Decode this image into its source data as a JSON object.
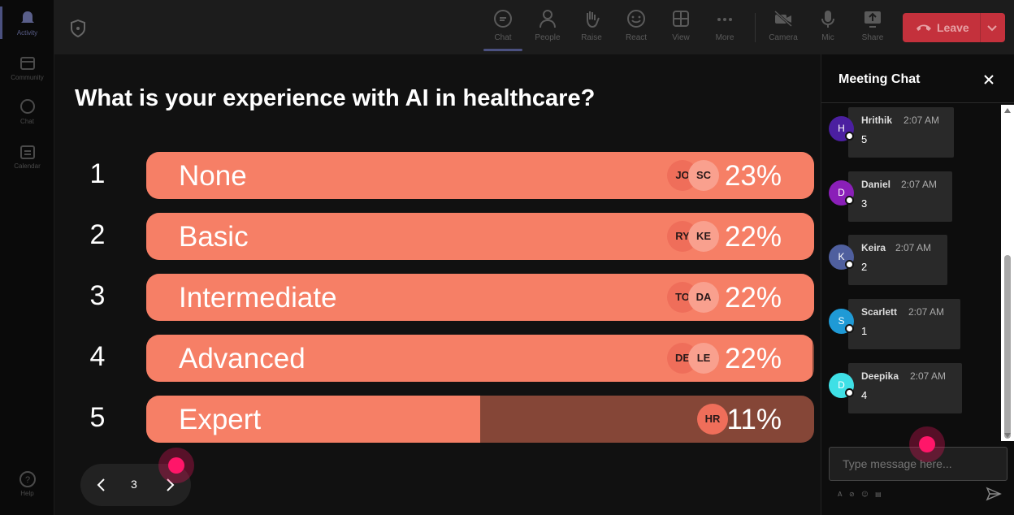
{
  "rail": {
    "items": [
      {
        "label": "Activity",
        "icon": "bell-icon",
        "active": true
      },
      {
        "label": "Community",
        "icon": "community-icon"
      },
      {
        "label": "Chat",
        "icon": "chat-icon"
      },
      {
        "label": "Calendar",
        "icon": "calendar-icon"
      }
    ],
    "help_label": "Help"
  },
  "toolbar": {
    "chat": "Chat",
    "people": "People",
    "raise": "Raise",
    "react": "React",
    "view": "View",
    "more": "More",
    "camera": "Camera",
    "mic": "Mic",
    "share": "Share",
    "leave": "Leave"
  },
  "poll": {
    "question": "What is your experience with AI in healthcare?",
    "options": [
      {
        "num": "1",
        "label": "None",
        "pct": "23%",
        "fill": 1.0,
        "avatars": [
          "JO",
          "SC"
        ]
      },
      {
        "num": "2",
        "label": "Basic",
        "pct": "22%",
        "fill": 1.0,
        "avatars": [
          "RY",
          "KE"
        ]
      },
      {
        "num": "3",
        "label": "Intermediate",
        "pct": "22%",
        "fill": 1.0,
        "avatars": [
          "TO",
          "DA"
        ]
      },
      {
        "num": "4",
        "label": "Advanced",
        "pct": "22%",
        "fill": 0.997,
        "avatars": [
          "DE",
          "LE"
        ]
      },
      {
        "num": "5",
        "label": "Expert",
        "pct": "11%",
        "fill": 0.5,
        "avatars": [
          "HR"
        ]
      }
    ],
    "page": "3"
  },
  "chat": {
    "title": "Meeting Chat",
    "messages": [
      {
        "initial": "H",
        "name": "Hrithik",
        "time": "2:07 AM",
        "text": "5",
        "color": "#4b1fa0"
      },
      {
        "initial": "D",
        "name": "Daniel",
        "time": "2:07 AM",
        "text": "3",
        "color": "#8a1fb8"
      },
      {
        "initial": "K",
        "name": "Keira",
        "time": "2:07 AM",
        "text": "2",
        "color": "#4f5f9e"
      },
      {
        "initial": "S",
        "name": "Scarlett",
        "time": "2:07 AM",
        "text": "1",
        "color": "#1f9ad6"
      },
      {
        "initial": "D",
        "name": "Deepika",
        "time": "2:07 AM",
        "text": "4",
        "color": "#3fe0e6"
      }
    ],
    "input_placeholder": "Type message here..."
  },
  "colors": {
    "bar_fill": "#f67f66",
    "bar_track": "#854637",
    "leave": "#c4313c",
    "accent": "#4b5180"
  }
}
